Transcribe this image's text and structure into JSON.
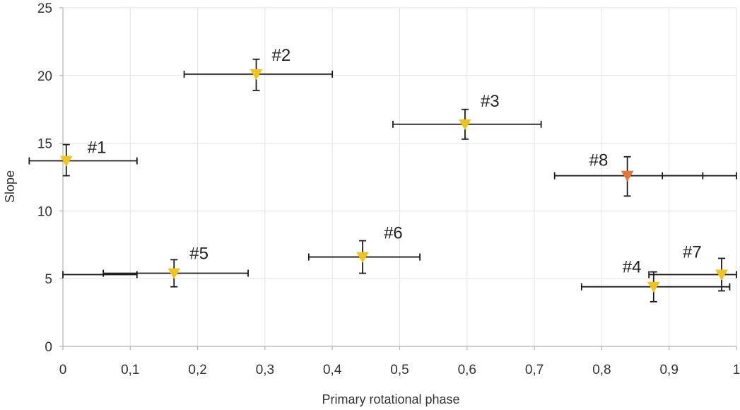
{
  "chart_data": {
    "type": "scatter",
    "xlabel": "Primary rotational phase",
    "ylabel": "Slope",
    "xlim": [
      0,
      1
    ],
    "ylim": [
      0,
      25
    ],
    "x_ticks": [
      "0",
      "0,1",
      "0,2",
      "0,3",
      "0,4",
      "0,5",
      "0,6",
      "0,7",
      "0,8",
      "0,9",
      "1"
    ],
    "y_ticks": [
      "0",
      "5",
      "10",
      "15",
      "20",
      "25"
    ],
    "grid": false,
    "marker": "triangle-down",
    "colors": {
      "default": "#f2c41a",
      "highlight": "#e8733a"
    },
    "points": [
      {
        "label": "#1",
        "x": 0.005,
        "y": 13.7,
        "yerr": [
          12.6,
          14.9
        ],
        "xerr": [
          [
            -0.05,
            0.11
          ]
        ],
        "color": "#f2c41a"
      },
      {
        "label": "#2",
        "x": 0.287,
        "y": 20.1,
        "yerr": [
          18.9,
          21.2
        ],
        "xerr": [
          [
            0.18,
            0.4
          ]
        ],
        "color": "#f2c41a"
      },
      {
        "label": "#3",
        "x": 0.597,
        "y": 16.4,
        "yerr": [
          15.3,
          17.5
        ],
        "xerr": [
          [
            0.49,
            0.71
          ]
        ],
        "color": "#f2c41a"
      },
      {
        "label": "#4",
        "x": 0.877,
        "y": 4.4,
        "yerr": [
          3.3,
          5.5
        ],
        "xerr": [
          [
            0.77,
            0.99
          ]
        ],
        "color": "#f2c41a"
      },
      {
        "label": "#5",
        "x": 0.165,
        "y": 5.4,
        "yerr": [
          4.4,
          6.4
        ],
        "xerr": [
          [
            0.06,
            0.275
          ]
        ],
        "color": "#f2c41a"
      },
      {
        "label": "#6",
        "x": 0.445,
        "y": 6.6,
        "yerr": [
          5.4,
          7.8
        ],
        "xerr": [
          [
            0.365,
            0.53
          ]
        ],
        "color": "#f2c41a"
      },
      {
        "label": "#7",
        "x": 0.978,
        "y": 5.3,
        "yerr": [
          4.1,
          6.5
        ],
        "xerr": [
          [
            0.87,
            1.0
          ],
          [
            0.0,
            0.11
          ]
        ],
        "color": "#f2c41a"
      },
      {
        "label": "#8",
        "x": 0.838,
        "y": 12.6,
        "yerr": [
          11.1,
          14.0
        ],
        "xerr": [
          [
            0.73,
            0.95
          ],
          [
            0.89,
            1.0
          ]
        ],
        "color": "#e8733a"
      }
    ]
  }
}
